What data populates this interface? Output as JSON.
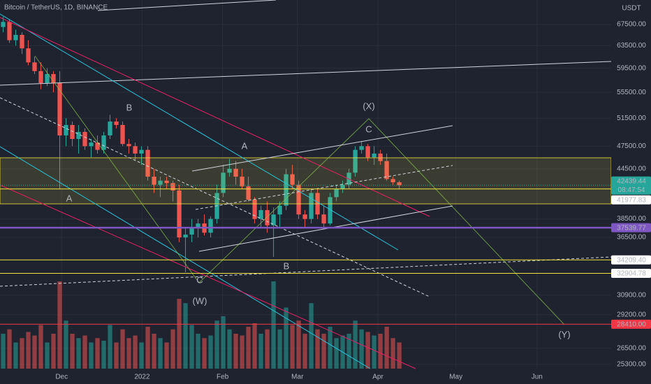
{
  "chart_data": {
    "type": "candlestick",
    "title": "Bitcoin / TetherUS, 1D, BINANCE",
    "currency": "USDT",
    "up_color": "#26a69a",
    "down_color": "#ef5350",
    "log_scale": true,
    "ylim": [
      24990,
      72440
    ],
    "yticks": [
      {
        "value": 67500,
        "label": "67500.00"
      },
      {
        "value": 63500,
        "label": "63500.00"
      },
      {
        "value": 59500,
        "label": "59500.00"
      },
      {
        "value": 55500,
        "label": "55500.00"
      },
      {
        "value": 51500,
        "label": "51500.00"
      },
      {
        "value": 47500,
        "label": "47500.00"
      },
      {
        "value": 44500,
        "label": "44500.00"
      },
      {
        "value": 38500,
        "label": "38500.00"
      },
      {
        "value": 36500,
        "label": "36500.00"
      },
      {
        "value": 30900,
        "label": "30900.00"
      },
      {
        "value": 29200,
        "label": "29200.00"
      },
      {
        "value": 26500,
        "label": "26500.00"
      },
      {
        "value": 25300,
        "label": "25300.00"
      }
    ],
    "xlim": [
      -0.5,
      96.7
    ],
    "xticks": [
      {
        "value": 9.3,
        "label": "Dec"
      },
      {
        "value": 22.1,
        "label": "2022"
      },
      {
        "value": 34.9,
        "label": "Feb"
      },
      {
        "value": 46.8,
        "label": "Mar"
      },
      {
        "value": 59.6,
        "label": "Apr"
      },
      {
        "value": 72,
        "label": "May"
      },
      {
        "value": 84.9,
        "label": "Jun"
      }
    ],
    "candles": [
      [
        67000,
        69000,
        66000,
        68000
      ],
      [
        68000,
        68500,
        64000,
        64500
      ],
      [
        64500,
        66500,
        63500,
        65500
      ],
      [
        65500,
        66000,
        62000,
        63000
      ],
      [
        63000,
        64500,
        60000,
        60500
      ],
      [
        60500,
        61500,
        58500,
        59000
      ],
      [
        59000,
        60500,
        56000,
        57000
      ],
      [
        57000,
        59500,
        56500,
        58500
      ],
      [
        58500,
        59000,
        55500,
        57000
      ],
      [
        57000,
        59000,
        42000,
        49000
      ],
      [
        49000,
        51500,
        47500,
        50500
      ],
      [
        50500,
        51000,
        47500,
        48500
      ],
      [
        48500,
        50500,
        46500,
        49500
      ],
      [
        49500,
        50000,
        47000,
        47500
      ],
      [
        47500,
        48500,
        46000,
        48000
      ],
      [
        48000,
        49000,
        46500,
        47000
      ],
      [
        47000,
        49500,
        46500,
        49000
      ],
      [
        49000,
        52000,
        48500,
        51000
      ],
      [
        51000,
        51500,
        50000,
        50500
      ],
      [
        50500,
        51000,
        47500,
        47800
      ],
      [
        47800,
        48500,
        46500,
        47500
      ],
      [
        47500,
        48000,
        45500,
        46500
      ],
      [
        46500,
        47500,
        45000,
        47000
      ],
      [
        47000,
        47500,
        43000,
        43500
      ],
      [
        43500,
        44500,
        41500,
        42500
      ],
      [
        42500,
        43500,
        41000,
        43000
      ],
      [
        43000,
        43500,
        42000,
        42700
      ],
      [
        42700,
        43000,
        40500,
        41800
      ],
      [
        41800,
        42500,
        36000,
        36500
      ],
      [
        36500,
        37500,
        33000,
        36800
      ],
      [
        36800,
        38500,
        36000,
        37500
      ],
      [
        37500,
        38500,
        36500,
        38000
      ],
      [
        38000,
        39000,
        36700,
        37000
      ],
      [
        37000,
        38800,
        36500,
        38500
      ],
      [
        38500,
        42500,
        38000,
        41500
      ],
      [
        41500,
        45000,
        41000,
        44000
      ],
      [
        44000,
        45800,
        43500,
        44500
      ],
      [
        44500,
        45500,
        42500,
        43500
      ],
      [
        43500,
        44500,
        42000,
        42300
      ],
      [
        42300,
        43500,
        40500,
        40700
      ],
      [
        40700,
        41000,
        38000,
        38500
      ],
      [
        38500,
        40000,
        37500,
        39500
      ],
      [
        39500,
        40500,
        37000,
        37800
      ],
      [
        37800,
        39800,
        34500,
        39000
      ],
      [
        39000,
        40500,
        37500,
        40000
      ],
      [
        40000,
        44500,
        39500,
        43800
      ],
      [
        43800,
        45000,
        42000,
        42500
      ],
      [
        42500,
        43000,
        38500,
        39000
      ],
      [
        39000,
        39500,
        37500,
        38500
      ],
      [
        38500,
        42000,
        38000,
        41500
      ],
      [
        41500,
        42000,
        38500,
        39000
      ],
      [
        39000,
        40000,
        37500,
        38000
      ],
      [
        38000,
        41500,
        37800,
        41000
      ],
      [
        41000,
        42500,
        40500,
        42000
      ],
      [
        42000,
        43000,
        41500,
        42500
      ],
      [
        42500,
        44500,
        42000,
        44000
      ],
      [
        44000,
        47500,
        43500,
        47000
      ],
      [
        47000,
        48200,
        46500,
        47500
      ],
      [
        47500,
        47800,
        45500,
        46000
      ],
      [
        46000,
        47500,
        45000,
        46500
      ],
      [
        46500,
        47000,
        45000,
        45500
      ],
      [
        45500,
        46500,
        43000,
        43200
      ],
      [
        43200,
        43500,
        42500,
        42800
      ],
      [
        42800,
        43000,
        42000,
        42439.44
      ]
    ],
    "volumes": [
      40,
      45,
      30,
      35,
      42,
      38,
      50,
      30,
      40,
      100,
      55,
      40,
      35,
      38,
      30,
      35,
      32,
      50,
      30,
      45,
      35,
      38,
      30,
      48,
      40,
      35,
      30,
      45,
      80,
      75,
      50,
      40,
      35,
      38,
      55,
      60,
      45,
      40,
      38,
      48,
      52,
      40,
      45,
      100,
      45,
      70,
      50,
      55,
      40,
      75,
      45,
      40,
      48,
      35,
      38,
      40,
      55,
      45,
      42,
      38,
      40,
      48,
      35,
      30
    ],
    "volume_max": 100,
    "last": {
      "value": 42439.44,
      "label": "42439.44",
      "countdown": "08:47:54",
      "color": "#26a69a"
    },
    "levels": [
      {
        "value": 41977.83,
        "label": "41977.83",
        "color": "#f2e33b",
        "label_color": "#ffffff"
      },
      {
        "value": 37539.77,
        "label": "37539.77",
        "color": "#7e57c2",
        "label_color": "#7e57c2"
      },
      {
        "value": 34209.4,
        "label": "34209.40",
        "color": "#f2e33b",
        "label_color": "#ffffff"
      },
      {
        "value": 32904.78,
        "label": "32904.78",
        "color": "#f2e33b",
        "label_color": "#ffffff"
      },
      {
        "value": 28410,
        "label": "28410.00",
        "color": "#f23645",
        "label_color": "#f23645"
      }
    ],
    "annotations": [
      {
        "text": "A",
        "color": "#f2e33b"
      },
      {
        "text": "B",
        "color": "#f2e33b"
      },
      {
        "text": "C",
        "color": "#f2e33b"
      },
      {
        "text": "(W)",
        "color": "#6f9a5c"
      },
      {
        "text": "A",
        "color": "#e0c9a6"
      },
      {
        "text": "B",
        "color": "#e0c9a6"
      },
      {
        "text": "C",
        "color": "#e0c9a6"
      },
      {
        "text": "(X)",
        "color": "#6f9a5c"
      },
      {
        "text": "(Y)",
        "color": "#6f9a5c"
      }
    ]
  }
}
